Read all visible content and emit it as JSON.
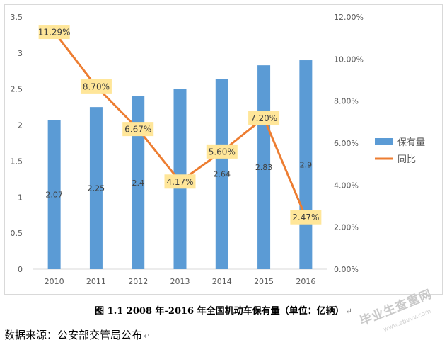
{
  "chart_data": {
    "type": "bar+line",
    "categories": [
      "2010",
      "2011",
      "2012",
      "2013",
      "2014",
      "2015",
      "2016"
    ],
    "series": [
      {
        "name": "保有量",
        "type": "bar",
        "axis": "left",
        "values": [
          2.07,
          2.25,
          2.4,
          2.5,
          2.64,
          2.83,
          2.9
        ],
        "labels": [
          "2.07",
          "2.25",
          "2.4",
          "",
          "2.64",
          "2.83",
          "2.9"
        ],
        "color": "#5b9bd5"
      },
      {
        "name": "同比",
        "type": "line",
        "axis": "right",
        "values": [
          11.29,
          8.7,
          6.67,
          4.17,
          5.6,
          7.2,
          2.47
        ],
        "labels": [
          "11.29%",
          "8.70%",
          "6.67%",
          "4.17%",
          "5.60%",
          "7.20%",
          "2.47%"
        ],
        "color": "#ed7d31",
        "label_bg": "#ffe699"
      }
    ],
    "y_left": {
      "min": 0,
      "max": 3.5,
      "ticks": [
        "0",
        "0.5",
        "1",
        "1.5",
        "2",
        "2.5",
        "3",
        "3.5"
      ]
    },
    "y_right": {
      "min": 0,
      "max": 12,
      "ticks": [
        "0.00%",
        "2.00%",
        "4.00%",
        "6.00%",
        "8.00%",
        "10.00%",
        "12.00%"
      ]
    },
    "legend_position": "right",
    "grid": false,
    "title": "图 1.1   2008 年-2016 年全国机动车保有量（单位：亿辆）"
  },
  "caption": "图 1.1   2008 年-2016 年全国机动车保有量（单位：亿辆）",
  "source": "数据来源：公安部交管局公布",
  "paragraph_mark": "↵",
  "watermark": "毕业生查重网",
  "watermark_sub": "www.sbvvv.com"
}
